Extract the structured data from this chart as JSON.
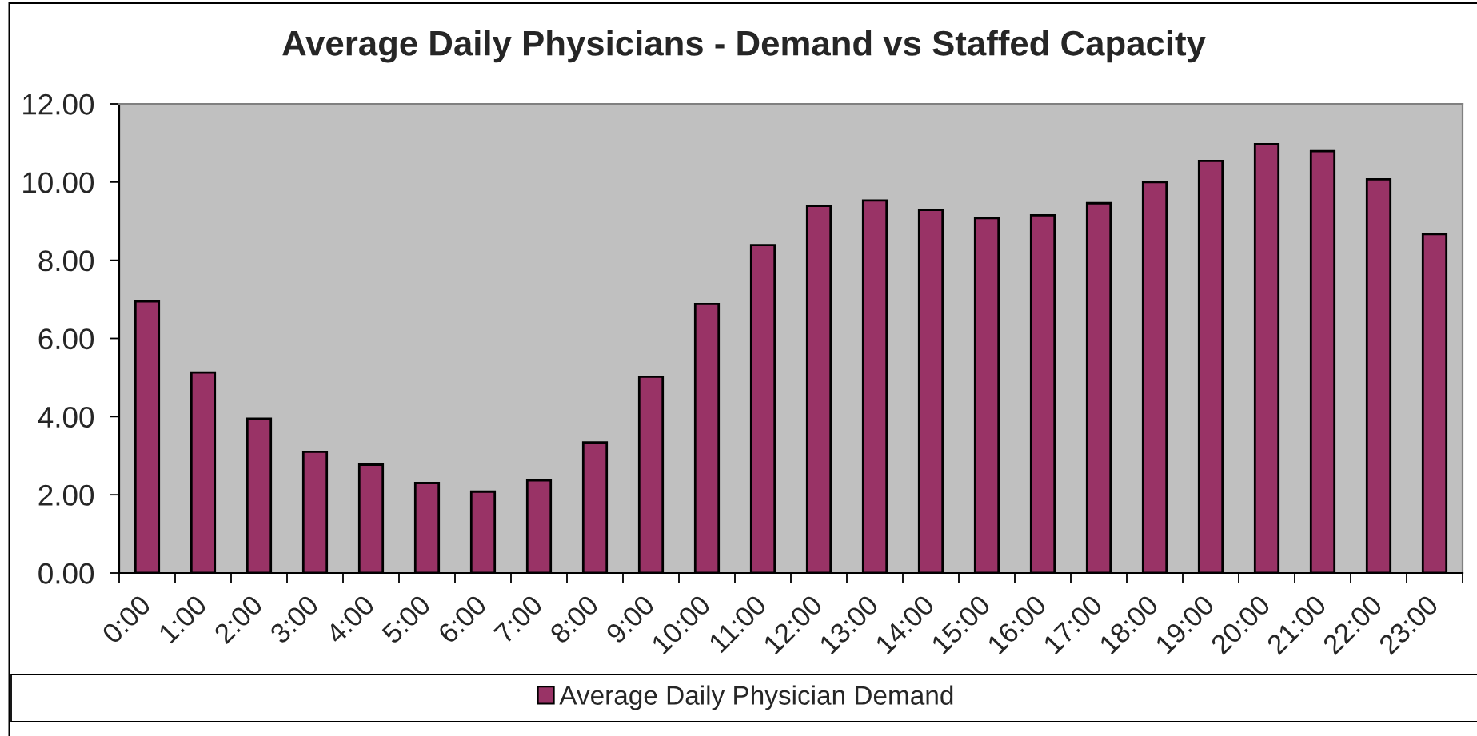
{
  "chart_data": {
    "type": "bar",
    "title": "Average Daily Physicians - Demand vs Staffed Capacity",
    "categories": [
      "0:00",
      "1:00",
      "2:00",
      "3:00",
      "4:00",
      "5:00",
      "6:00",
      "7:00",
      "8:00",
      "9:00",
      "10:00",
      "11:00",
      "12:00",
      "13:00",
      "14:00",
      "15:00",
      "16:00",
      "17:00",
      "18:00",
      "19:00",
      "20:00",
      "21:00",
      "22:00",
      "23:00"
    ],
    "series": [
      {
        "name": "Average Daily Physician Demand",
        "color": "#993366",
        "values": [
          6.95,
          5.13,
          3.95,
          3.1,
          2.77,
          2.3,
          2.08,
          2.37,
          3.34,
          5.02,
          6.88,
          8.39,
          9.39,
          9.53,
          9.29,
          9.08,
          9.15,
          9.46,
          10.0,
          10.54,
          10.97,
          10.79,
          10.07,
          8.67
        ]
      }
    ],
    "ylim": [
      0,
      12
    ],
    "yticks": [
      {
        "value": 0,
        "label": "0.00"
      },
      {
        "value": 2,
        "label": "2.00"
      },
      {
        "value": 4,
        "label": "4.00"
      },
      {
        "value": 6,
        "label": "6.00"
      },
      {
        "value": 8,
        "label": "8.00"
      },
      {
        "value": 10,
        "label": "10.00"
      },
      {
        "value": 12,
        "label": "12.00"
      }
    ],
    "grid": false,
    "legend": "bottom"
  }
}
